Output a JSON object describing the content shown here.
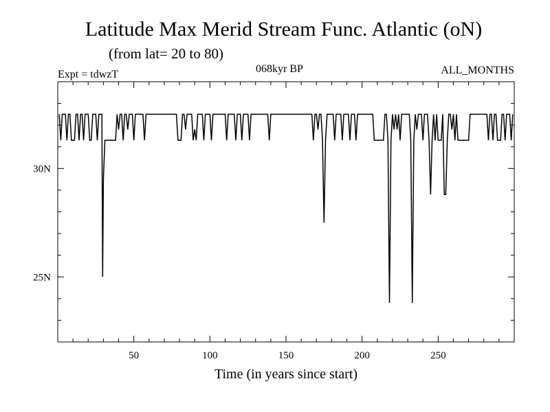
{
  "chart_data": {
    "type": "line",
    "title": "Latitude Max Merid Stream Func. Atlantic (oN)",
    "subtitle": "(from lat= 20 to 80)",
    "header_left": "Expt = tdwzT",
    "header_center": "068kyr BP",
    "header_right": "ALL_MONTHS",
    "xlabel": "Time (in years since start)",
    "ylabel": "",
    "xlim": [
      0,
      300
    ],
    "ylim": [
      22,
      34
    ],
    "x_ticks": [
      50,
      100,
      150,
      200,
      250
    ],
    "x_tick_labels": [
      "50",
      "100",
      "150",
      "200",
      "250"
    ],
    "y_ticks": [
      25,
      30
    ],
    "y_tick_labels": [
      "25N",
      "30N"
    ],
    "grid": false,
    "series": [
      {
        "values": [
          [
            1,
            32.5
          ],
          [
            2,
            31.3
          ],
          [
            3,
            32.5
          ],
          [
            5,
            32.5
          ],
          [
            6,
            31.3
          ],
          [
            7,
            32.5
          ],
          [
            8,
            32.5
          ],
          [
            9,
            31.3
          ],
          [
            11,
            31.3
          ],
          [
            12,
            32.5
          ],
          [
            13,
            32.5
          ],
          [
            14,
            31.3
          ],
          [
            15,
            32.5
          ],
          [
            16,
            32.5
          ],
          [
            17,
            31.3
          ],
          [
            18,
            32.5
          ],
          [
            20,
            32.5
          ],
          [
            21,
            31.3
          ],
          [
            22,
            31.3
          ],
          [
            23,
            32.5
          ],
          [
            25,
            32.5
          ],
          [
            26,
            31.3
          ],
          [
            27,
            32.5
          ],
          [
            29,
            32.5
          ],
          [
            29.5,
            25.0
          ],
          [
            30,
            29.5
          ],
          [
            31,
            31.3
          ],
          [
            38,
            31.3
          ],
          [
            39,
            32.5
          ],
          [
            40,
            31.8
          ],
          [
            41,
            32.5
          ],
          [
            42,
            32.5
          ],
          [
            43,
            31.3
          ],
          [
            44,
            32.5
          ],
          [
            45,
            32.5
          ],
          [
            46,
            31.8
          ],
          [
            47,
            32.5
          ],
          [
            49,
            32.5
          ],
          [
            50,
            31.3
          ],
          [
            51,
            32.5
          ],
          [
            56,
            32.5
          ],
          [
            57,
            31.3
          ],
          [
            58,
            32.5
          ],
          [
            78,
            32.5
          ],
          [
            79,
            31.3
          ],
          [
            81,
            31.3
          ],
          [
            82,
            32.5
          ],
          [
            83,
            32.5
          ],
          [
            84,
            31.8
          ],
          [
            85,
            32.5
          ],
          [
            88,
            32.5
          ],
          [
            89,
            31.3
          ],
          [
            90,
            31.8
          ],
          [
            91,
            31.3
          ],
          [
            92,
            32.5
          ],
          [
            95,
            32.5
          ],
          [
            96,
            31.3
          ],
          [
            97,
            32.5
          ],
          [
            100,
            32.5
          ],
          [
            101,
            31.3
          ],
          [
            102,
            32.5
          ],
          [
            110,
            32.5
          ],
          [
            111,
            31.3
          ],
          [
            112,
            32.5
          ],
          [
            116,
            32.5
          ],
          [
            117,
            31.3
          ],
          [
            118,
            32.5
          ],
          [
            120,
            32.5
          ],
          [
            121,
            31.3
          ],
          [
            122,
            32.5
          ],
          [
            125,
            32.5
          ],
          [
            126,
            31.3
          ],
          [
            127,
            32.5
          ],
          [
            138,
            32.5
          ],
          [
            139,
            31.3
          ],
          [
            140,
            32.5
          ],
          [
            167,
            32.5
          ],
          [
            168,
            31.3
          ],
          [
            169,
            32.5
          ],
          [
            170,
            32.5
          ],
          [
            171,
            31.8
          ],
          [
            172,
            32.5
          ],
          [
            173,
            32.5
          ],
          [
            174,
            31.3
          ],
          [
            175,
            27.5
          ],
          [
            176,
            31.3
          ],
          [
            177,
            32.5
          ],
          [
            181,
            32.5
          ],
          [
            182,
            31.3
          ],
          [
            183,
            32.5
          ],
          [
            186,
            32.5
          ],
          [
            187,
            31.3
          ],
          [
            188,
            32.5
          ],
          [
            191,
            32.5
          ],
          [
            192,
            31.3
          ],
          [
            193,
            32.5
          ],
          [
            195,
            32.5
          ],
          [
            196,
            31.3
          ],
          [
            197,
            32.5
          ],
          [
            207,
            32.5
          ],
          [
            208,
            31.3
          ],
          [
            214,
            31.3
          ],
          [
            215,
            32.5
          ],
          [
            216,
            32.5
          ],
          [
            217,
            31.3
          ],
          [
            218,
            23.8
          ],
          [
            219,
            31.3
          ],
          [
            220,
            32.5
          ],
          [
            221,
            31.8
          ],
          [
            222,
            32.5
          ],
          [
            223,
            31.8
          ],
          [
            224,
            32.5
          ],
          [
            225,
            31.3
          ],
          [
            226,
            32.5
          ],
          [
            231,
            32.5
          ],
          [
            232,
            31.3
          ],
          [
            233,
            23.8
          ],
          [
            234,
            31.3
          ],
          [
            235,
            32.5
          ],
          [
            236,
            31.8
          ],
          [
            237,
            32.5
          ],
          [
            239,
            32.5
          ],
          [
            240,
            31.3
          ],
          [
            241,
            32.5
          ],
          [
            243,
            32.5
          ],
          [
            244,
            31.3
          ],
          [
            245,
            28.8
          ],
          [
            246,
            31.3
          ],
          [
            247,
            32.5
          ],
          [
            248,
            31.3
          ],
          [
            249,
            32.5
          ],
          [
            250,
            31.3
          ],
          [
            252,
            31.3
          ],
          [
            253,
            32.5
          ],
          [
            254,
            28.8
          ],
          [
            255,
            28.8
          ],
          [
            256,
            31.3
          ],
          [
            257,
            32.5
          ],
          [
            258,
            32.5
          ],
          [
            259,
            31.8
          ],
          [
            260,
            32.5
          ],
          [
            261,
            31.3
          ],
          [
            262,
            32.5
          ],
          [
            263,
            31.3
          ],
          [
            270,
            31.3
          ],
          [
            271,
            32.5
          ],
          [
            282,
            32.5
          ],
          [
            283,
            31.3
          ],
          [
            284,
            32.5
          ],
          [
            285,
            32.5
          ],
          [
            286,
            31.3
          ],
          [
            287,
            32.5
          ],
          [
            288,
            32.5
          ],
          [
            289,
            31.3
          ],
          [
            291,
            31.3
          ],
          [
            292,
            32.5
          ],
          [
            293,
            32.5
          ],
          [
            294,
            31.3
          ],
          [
            295,
            32.5
          ],
          [
            297,
            32.5
          ],
          [
            298,
            31.3
          ],
          [
            299,
            32.5
          ]
        ]
      }
    ]
  }
}
